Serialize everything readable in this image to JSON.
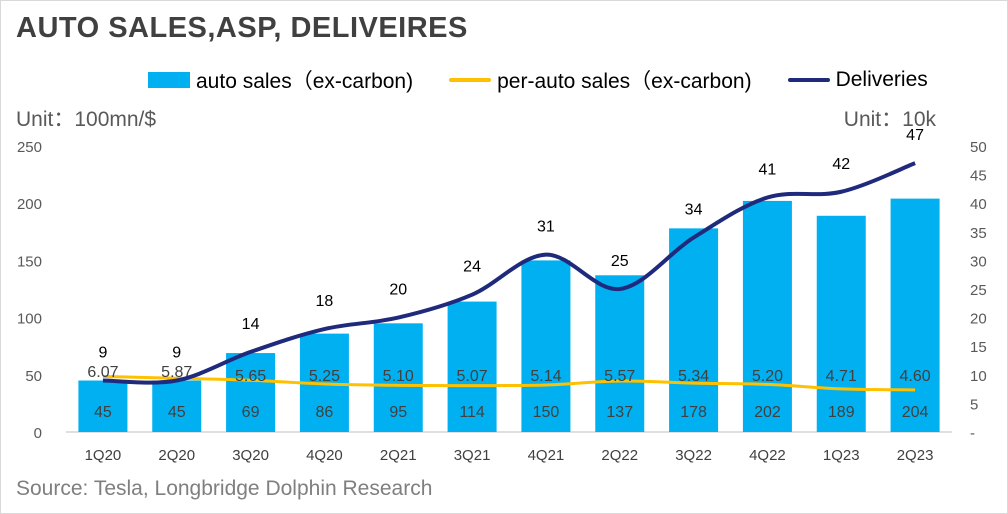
{
  "title": "AUTO SALES,ASP, DELIVEIRES",
  "legend": {
    "bar": "auto sales（ex-carbon)",
    "asp": "per-auto sales（ex-carbon)",
    "del": "Deliveries"
  },
  "unit_left": "Unit：100mn/$",
  "unit_right": "Unit：10k",
  "source": "Source: Tesla, Longbridge Dolphin Research",
  "colors": {
    "bar": "#00b0f0",
    "asp": "#ffc000",
    "deliveries": "#1f2a7c"
  },
  "chart_data": {
    "type": "bar",
    "categories": [
      "1Q20",
      "2Q20",
      "3Q20",
      "4Q20",
      "2Q21",
      "3Q21",
      "4Q21",
      "2Q22",
      "3Q22",
      "4Q22",
      "1Q23",
      "2Q23"
    ],
    "series": [
      {
        "name": "auto sales（ex-carbon)",
        "type": "bar",
        "axis": "left",
        "values": [
          45,
          45,
          69,
          86,
          95,
          114,
          150,
          137,
          178,
          202,
          189,
          204
        ]
      },
      {
        "name": "per-auto sales（ex-carbon)",
        "type": "line",
        "axis": "left",
        "values": [
          6.07,
          5.87,
          5.65,
          5.25,
          5.1,
          5.07,
          5.14,
          5.57,
          5.34,
          5.2,
          4.71,
          4.6
        ]
      },
      {
        "name": "Deliveries",
        "type": "line",
        "axis": "right",
        "values": [
          9,
          9,
          14,
          18,
          20,
          24,
          31,
          25,
          34,
          41,
          42,
          47
        ]
      }
    ],
    "y_left": {
      "min": 0,
      "max": 250,
      "ticks": [
        "0",
        "50",
        "100",
        "150",
        "200",
        "250"
      ]
    },
    "y_right": {
      "min": 0,
      "max": 50,
      "ticks": [
        "-",
        "5",
        "10",
        "15",
        "20",
        "25",
        "30",
        "35",
        "40",
        "45",
        "50"
      ]
    },
    "grid": false
  }
}
